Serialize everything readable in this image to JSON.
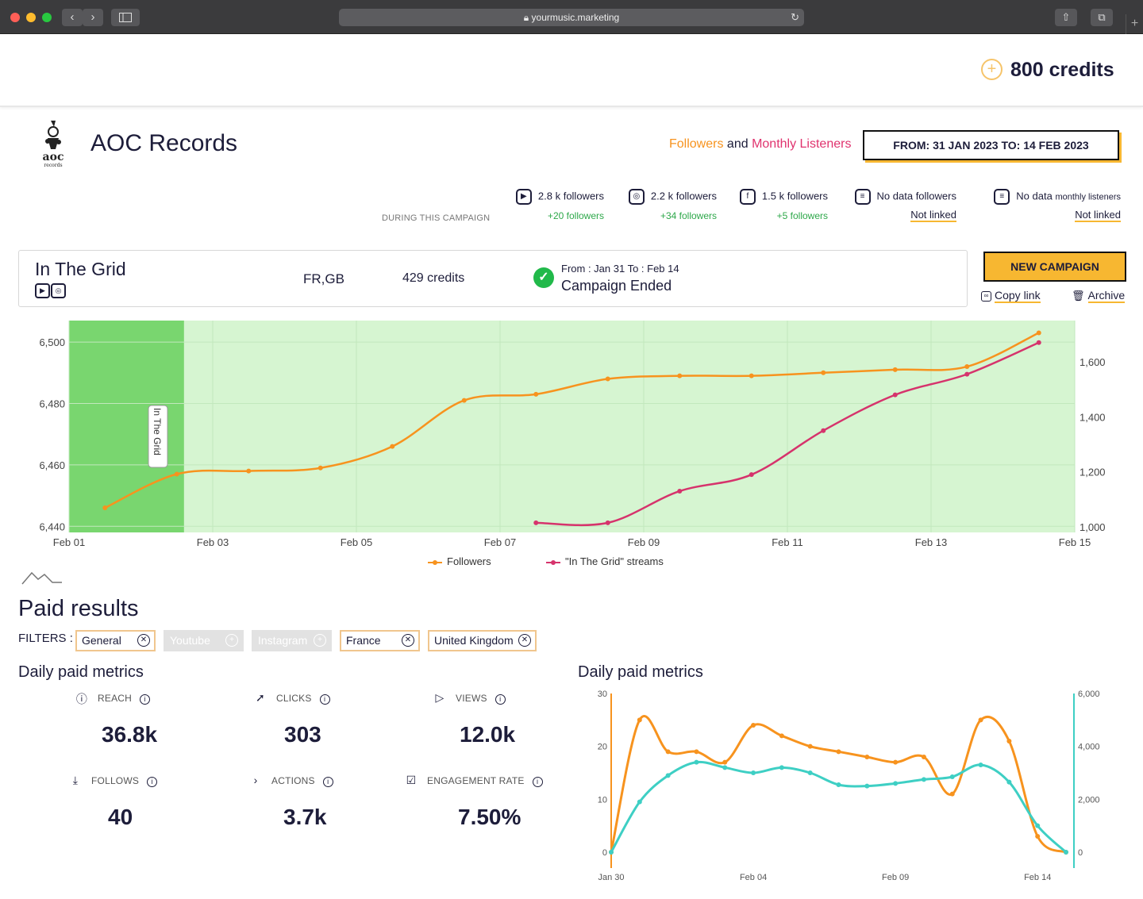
{
  "browser": {
    "url": "yourmusic.marketing",
    "lock_icon": "lock-icon"
  },
  "header": {
    "credits": "800 credits"
  },
  "artist": {
    "name": "AOC Records",
    "legend_followers": "Followers",
    "legend_and": " and ",
    "legend_listeners": "Monthly Listeners",
    "date_range": "FROM: 31 JAN 2023 TO: 14 FEB 2023"
  },
  "stats": {
    "during_label": "DURING THIS CAMPAIGN",
    "items": [
      {
        "icon": "youtube-icon",
        "value": "2.8 k followers",
        "delta": "+20 followers"
      },
      {
        "icon": "instagram-icon",
        "value": "2.2 k followers",
        "delta": "+34 followers"
      },
      {
        "icon": "facebook-icon",
        "value": "1.5 k followers",
        "delta": "+5 followers"
      },
      {
        "icon": "document-icon",
        "value": "No data followers",
        "link": "Not linked"
      },
      {
        "icon": "document-icon",
        "value_prefix": "No data",
        "value_suffix": "monthly listeners",
        "link": "Not linked"
      }
    ]
  },
  "campaign": {
    "name": "In The Grid",
    "countries": "FR,GB",
    "credits": "429 credits",
    "dates": "From : Jan 31 To : Feb 14",
    "status": "Campaign Ended",
    "new_campaign": "NEW CAMPAIGN",
    "copy_link": "Copy link",
    "archive": "Archive"
  },
  "chart_data": [
    {
      "type": "line",
      "x_ticks": [
        "Feb 01",
        "Feb 03",
        "Feb 05",
        "Feb 07",
        "Feb 09",
        "Feb 11",
        "Feb 13",
        "Feb 15"
      ],
      "y_left_ticks": [
        "6,440",
        "6,460",
        "6,480",
        "6,500"
      ],
      "y_right_ticks": [
        "1,000",
        "1,200",
        "1,400",
        "1,600"
      ],
      "y_left_range": [
        6438,
        6507
      ],
      "y_right_range": [
        980,
        1750
      ],
      "x_range": [
        0,
        14
      ],
      "annotation": "In The Grid",
      "annotation_x_range": [
        0,
        1.6
      ],
      "series": [
        {
          "name": "Followers",
          "axis": "left",
          "color": "#f7931e",
          "x": [
            0.5,
            1.5,
            2.5,
            3.5,
            4.5,
            5.5,
            6.5,
            7.5,
            8.5,
            9.5,
            10.5,
            11.5,
            12.5,
            13.5
          ],
          "values": [
            6446,
            6457,
            6458,
            6459,
            6466,
            6481,
            6483,
            6488,
            6489,
            6489,
            6490,
            6491,
            6492,
            6503
          ]
        },
        {
          "name": "\"In The Grid\" streams",
          "axis": "right",
          "color": "#d6336c",
          "x": [
            6.5,
            7.5,
            8.5,
            9.5,
            10.5,
            11.5,
            12.5,
            13.5
          ],
          "values": [
            1015,
            1015,
            1130,
            1190,
            1350,
            1480,
            1555,
            1670
          ]
        }
      ]
    },
    {
      "type": "line",
      "title": "Daily paid metrics",
      "x_ticks": [
        "Jan 30",
        "Feb 04",
        "Feb 09",
        "Feb 14"
      ],
      "y_left_ticks": [
        "0",
        "10",
        "20",
        "30"
      ],
      "y_right_ticks": [
        "0",
        "2,000",
        "4,000",
        "6,000"
      ],
      "y_left_range": [
        0,
        30
      ],
      "y_right_range": [
        0,
        6000
      ],
      "x_range": [
        0,
        16
      ],
      "series": [
        {
          "axis": "left",
          "color": "#f7931e",
          "x": [
            0,
            1,
            2,
            3,
            4,
            5,
            6,
            7,
            8,
            9,
            10,
            11,
            12,
            13,
            14,
            15,
            16
          ],
          "values": [
            0,
            25,
            19,
            19,
            17,
            24,
            22,
            20,
            19,
            18,
            17,
            18,
            11,
            25,
            21,
            3,
            0
          ]
        },
        {
          "axis": "right",
          "color": "#3ecfc4",
          "x": [
            0,
            1,
            2,
            3,
            4,
            5,
            6,
            7,
            8,
            9,
            10,
            11,
            12,
            13,
            14,
            15,
            16
          ],
          "values": [
            0,
            1900,
            2900,
            3400,
            3200,
            3000,
            3200,
            3000,
            2550,
            2500,
            2600,
            2750,
            2850,
            3300,
            2650,
            1000,
            0
          ]
        }
      ]
    }
  ],
  "paid": {
    "title": "Paid results",
    "filters_label": "FILTERS :",
    "filters": [
      {
        "label": "General",
        "active": true
      },
      {
        "label": "Youtube",
        "active": false
      },
      {
        "label": "Instagram",
        "active": false
      },
      {
        "label": "France",
        "active": true
      },
      {
        "label": "United Kingdom",
        "active": true
      }
    ],
    "metrics_title": "Daily paid metrics",
    "metrics": [
      {
        "label": "REACH",
        "value": "36.8k",
        "icon": "accessibility-icon"
      },
      {
        "label": "CLICKS",
        "value": "303",
        "icon": "cursor-icon"
      },
      {
        "label": "VIEWS",
        "value": "12.0k",
        "icon": "play-circle-icon"
      },
      {
        "label": "FOLLOWS",
        "value": "40",
        "icon": "follow-icon"
      },
      {
        "label": "ACTIONS",
        "value": "3.7k",
        "icon": "chevron-right-icon"
      },
      {
        "label": "ENGAGEMENT RATE",
        "value": "7.50%",
        "icon": "engagement-icon"
      }
    ],
    "chart_title": "Daily paid metrics"
  }
}
